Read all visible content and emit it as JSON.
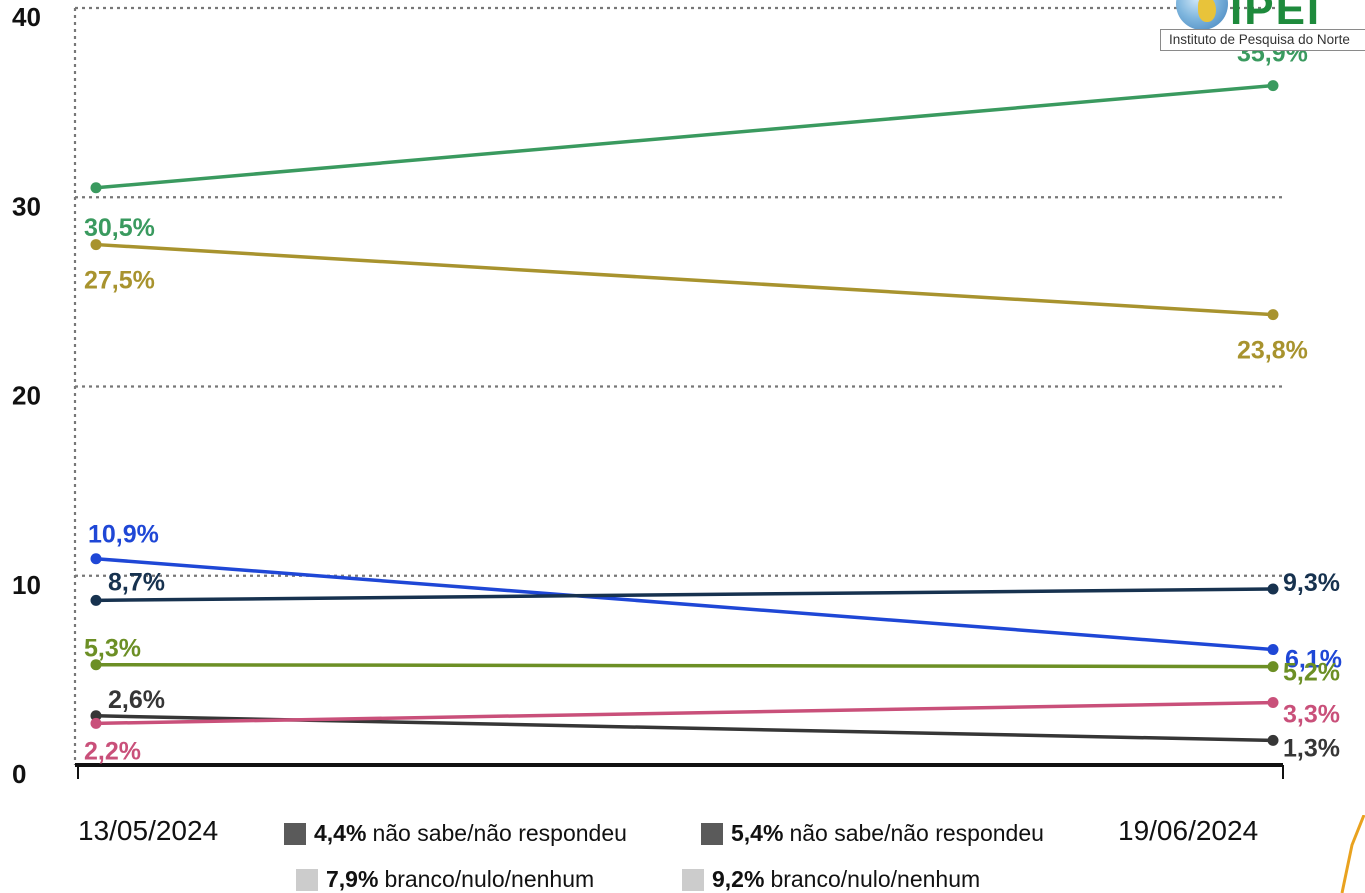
{
  "logo": {
    "text": "IPEI",
    "subtitle": "Instituto de Pesquisa do Norte"
  },
  "chart_data": {
    "type": "line",
    "title": "",
    "xlabel": "",
    "ylabel": "",
    "x": [
      "13/05/2024",
      "19/06/2024"
    ],
    "ylim": [
      0,
      40
    ],
    "yticks": [
      "0",
      "10",
      "20",
      "30",
      "40"
    ],
    "grid": true,
    "series": [
      {
        "color": "#3a9a5f",
        "values": [
          30.5,
          35.9
        ],
        "labels": [
          "30,5%",
          "35,9%"
        ]
      },
      {
        "color": "#a8932e",
        "values": [
          27.5,
          23.8
        ],
        "labels": [
          "27,5%",
          "23,8%"
        ]
      },
      {
        "color": "#1f47d6",
        "values": [
          10.9,
          6.1
        ],
        "labels": [
          "10,9%",
          "6,1%"
        ]
      },
      {
        "color": "#17324f",
        "values": [
          8.7,
          9.3
        ],
        "labels": [
          "8,7%",
          "9,3%"
        ]
      },
      {
        "color": "#6c8f25",
        "values": [
          5.3,
          5.2
        ],
        "labels": [
          "5,3%",
          "5,2%"
        ]
      },
      {
        "color": "#363636",
        "values": [
          2.6,
          1.3
        ],
        "labels": [
          "2,6%",
          "1,3%"
        ]
      },
      {
        "color": "#c9507a",
        "values": [
          2.2,
          3.3
        ],
        "labels": [
          "2,2%",
          "3,3%"
        ]
      }
    ]
  },
  "legend": [
    {
      "swatch_color": "#5a5a5a",
      "percent": "4,4%",
      "text": "não sabe/não respondeu"
    },
    {
      "swatch_color": "#5a5a5a",
      "percent": "5,4%",
      "text": "não sabe/não respondeu"
    },
    {
      "swatch_color": "#cccccc",
      "percent": "7,9%",
      "text": "branco/nulo/nenhum"
    },
    {
      "swatch_color": "#cccccc",
      "percent": "9,2%",
      "text": "branco/nulo/nenhum"
    }
  ]
}
